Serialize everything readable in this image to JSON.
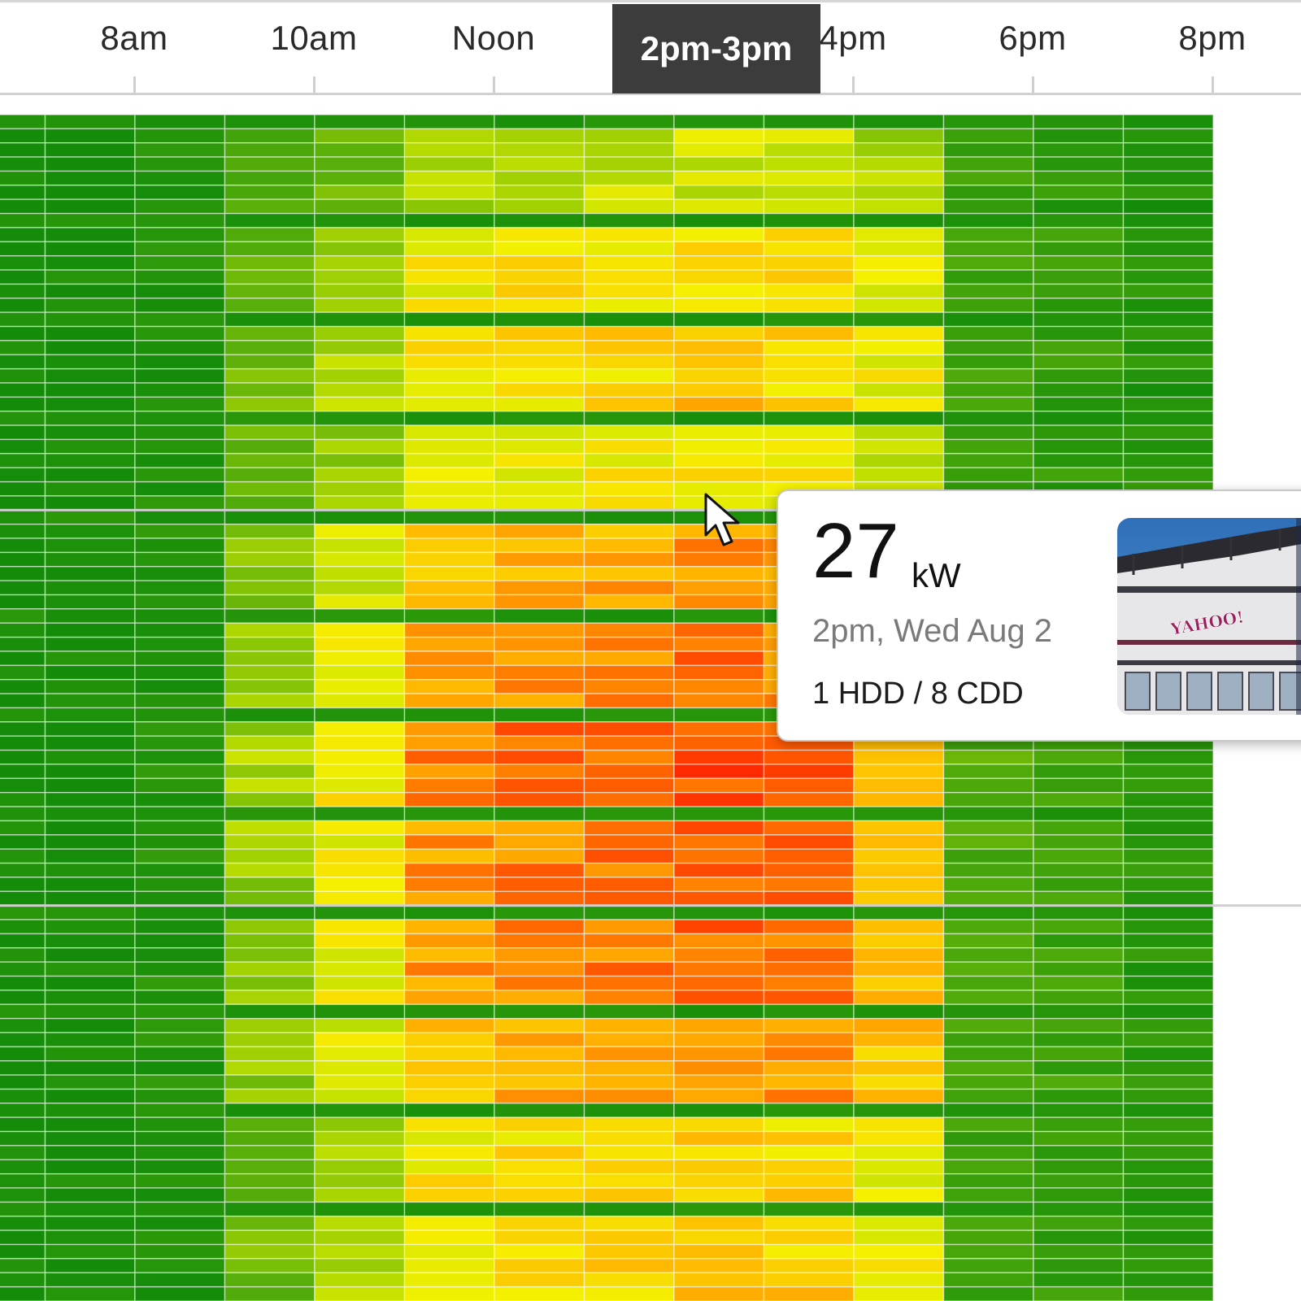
{
  "axis": {
    "ticks": [
      {
        "label": "8am",
        "hour": 8
      },
      {
        "label": "10am",
        "hour": 10
      },
      {
        "label": "Noon",
        "hour": 12
      },
      {
        "label": "2pm",
        "hour": 14
      },
      {
        "label": "4pm",
        "hour": 16
      },
      {
        "label": "6pm",
        "hour": 18
      },
      {
        "label": "8pm",
        "hour": 20
      }
    ],
    "hover_label": "2pm-3pm"
  },
  "colors": {
    "scale_low": "#148c0a",
    "scale_mid": "#f5f000",
    "scale_high": "#ff0000",
    "grid_line": "#ffffff",
    "tooltip_border": "#c8c8c8"
  },
  "tooltip": {
    "value": "27",
    "unit": "kW",
    "time": "2pm, Wed Aug 2",
    "degree_days": "1 HDD / 8 CDD",
    "photo": "building-photo",
    "photo_sign": "YAHOO!"
  },
  "cursor": {
    "icon": "arrow-pointer-icon"
  },
  "chart_data": {
    "type": "heatmap",
    "x_labels": [
      "8am",
      "10am",
      "Noon",
      "2pm",
      "4pm",
      "6pm",
      "8pm"
    ],
    "x_columns_hours": [
      7,
      8,
      9,
      10,
      11,
      12,
      13,
      14,
      15,
      16,
      17,
      18,
      19,
      20
    ],
    "rows_per_week": 7,
    "weeks": 12,
    "value_scale": {
      "min": 0,
      "max": 1
    },
    "weekly_intensity": [
      0.55,
      0.7,
      0.72,
      0.66,
      0.82,
      0.88,
      0.95,
      0.92,
      0.9,
      0.85,
      0.72,
      0.74
    ],
    "hour_profile": [
      0.0,
      0.02,
      0.08,
      0.45,
      0.62,
      0.82,
      0.86,
      0.88,
      0.92,
      0.88,
      0.78,
      0.28,
      0.2,
      0.12
    ],
    "hover_cell": {
      "hour": 14,
      "value_kw": 27
    }
  }
}
